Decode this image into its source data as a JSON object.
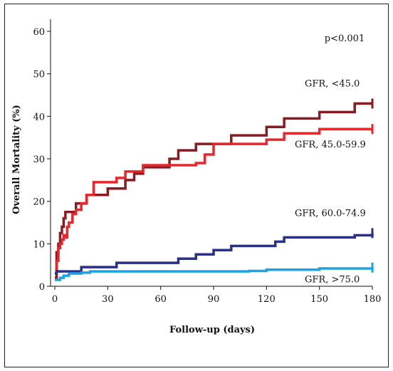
{
  "chart_data": {
    "type": "line",
    "title": "",
    "xlabel": "Follow-up (days)",
    "ylabel": "Overall Mortality (%)",
    "xlim": [
      0,
      180
    ],
    "ylim": [
      0,
      60
    ],
    "xticks": [
      0,
      30,
      60,
      90,
      120,
      150,
      180
    ],
    "yticks": [
      0,
      10,
      20,
      30,
      40,
      50,
      60
    ],
    "grid": false,
    "annotation": "p<0.001",
    "series": [
      {
        "name": "GFR, <45.0",
        "color": "#8b1a22",
        "x": [
          0,
          1,
          2,
          3,
          4,
          5,
          6,
          7,
          8,
          10,
          12,
          15,
          18,
          22,
          25,
          30,
          35,
          40,
          45,
          50,
          55,
          60,
          65,
          70,
          75,
          80,
          85,
          90,
          100,
          110,
          120,
          125,
          130,
          140,
          150,
          160,
          170,
          180
        ],
        "y": [
          2,
          8,
          10,
          12.5,
          14,
          16,
          17.5,
          17.5,
          17.5,
          17.5,
          19.5,
          19.5,
          21.5,
          21.5,
          21.5,
          23,
          23,
          25,
          26.5,
          28,
          28,
          28,
          30,
          32,
          32,
          33.5,
          33.5,
          33.5,
          35.5,
          35.5,
          37.5,
          37.5,
          39.5,
          39.5,
          41,
          41,
          43,
          43
        ]
      },
      {
        "name": "GFR, 45.0-59.9",
        "color": "#e8262b",
        "x": [
          0,
          1,
          2,
          3,
          4,
          5,
          6,
          7,
          8,
          10,
          12,
          15,
          18,
          22,
          25,
          30,
          35,
          40,
          45,
          50,
          55,
          60,
          65,
          70,
          75,
          80,
          85,
          90,
          100,
          110,
          120,
          125,
          130,
          140,
          150,
          160,
          170,
          180
        ],
        "y": [
          3,
          6,
          9,
          10,
          11,
          12,
          11.5,
          14,
          15,
          17,
          18,
          19.5,
          21.5,
          24.5,
          24.5,
          24.5,
          25.5,
          27,
          27,
          28.5,
          28.5,
          28.5,
          28.5,
          28.5,
          28.5,
          29,
          31,
          33.5,
          33.5,
          33.5,
          34.5,
          34.5,
          36,
          36,
          37,
          37,
          37,
          37
        ]
      },
      {
        "name": "GFR, 60.0-74.9",
        "color": "#2b2f88",
        "x": [
          0,
          1,
          2,
          5,
          10,
          15,
          20,
          25,
          30,
          35,
          40,
          50,
          60,
          65,
          70,
          75,
          80,
          90,
          100,
          110,
          120,
          125,
          130,
          140,
          150,
          160,
          170,
          180
        ],
        "y": [
          3,
          3.5,
          3.5,
          3.5,
          3.5,
          4.5,
          4.5,
          4.5,
          4.5,
          5.5,
          5.5,
          5.5,
          5.5,
          5.5,
          6.5,
          6.5,
          7.5,
          8.5,
          9.5,
          9.5,
          9.5,
          10.5,
          11.5,
          11.5,
          11.5,
          11.5,
          12,
          12.5
        ]
      },
      {
        "name": "GFR, >75.0",
        "color": "#1aa3e6",
        "x": [
          0,
          2,
          3,
          5,
          8,
          10,
          15,
          20,
          30,
          50,
          80,
          100,
          110,
          120,
          150,
          180
        ],
        "y": [
          1.5,
          1.5,
          2,
          2.5,
          3,
          3,
          3.2,
          3.5,
          3.5,
          3.5,
          3.5,
          3.5,
          3.6,
          3.9,
          4.2,
          4.4
        ]
      }
    ]
  }
}
